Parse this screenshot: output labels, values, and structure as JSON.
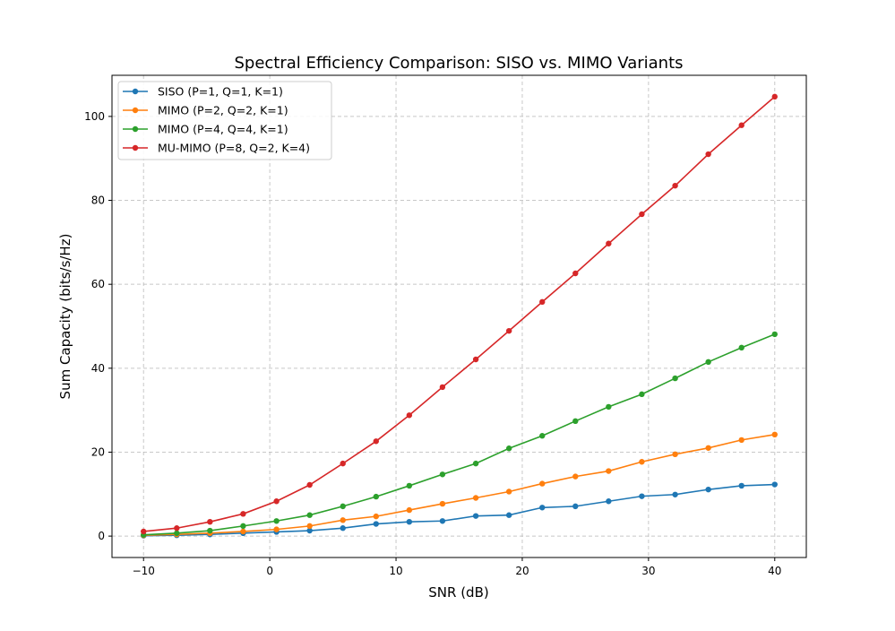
{
  "chart_data": {
    "type": "line",
    "title": "Spectral Efficiency Comparison: SISO vs. MIMO Variants",
    "xlabel": "SNR (dB)",
    "ylabel": "Sum Capacity (bits/s/Hz)",
    "xlim": [
      -12.5,
      42.5
    ],
    "ylim": [
      -5.1,
      109.8
    ],
    "xticks": [
      -10,
      0,
      10,
      20,
      30,
      40
    ],
    "xtick_labels": [
      "−10",
      "0",
      "10",
      "20",
      "30",
      "40"
    ],
    "yticks": [
      0,
      20,
      40,
      60,
      80,
      100
    ],
    "ytick_labels": [
      "0",
      "20",
      "40",
      "60",
      "80",
      "100"
    ],
    "grid": true,
    "legend_position": "top-left",
    "x": [
      -10,
      -7.37,
      -4.74,
      -2.11,
      0.53,
      3.16,
      5.79,
      8.42,
      11.05,
      13.68,
      16.32,
      18.95,
      21.58,
      24.21,
      26.84,
      29.47,
      32.11,
      34.74,
      37.37,
      40
    ],
    "series": [
      {
        "name": "SISO (P=1, Q=1, K=1)",
        "color": "#1f77b4",
        "values": [
          0.1,
          0.2,
          0.4,
          0.7,
          1.0,
          1.3,
          1.9,
          2.9,
          3.4,
          3.6,
          4.8,
          5.0,
          6.8,
          7.1,
          8.3,
          9.5,
          9.9,
          11.1,
          12.0,
          12.3
        ]
      },
      {
        "name": "MIMO (P=2, Q=2, K=1)",
        "color": "#ff7f0e",
        "values": [
          0.2,
          0.4,
          0.7,
          1.1,
          1.6,
          2.4,
          3.8,
          4.7,
          6.2,
          7.7,
          9.1,
          10.6,
          12.5,
          14.2,
          15.5,
          17.7,
          19.5,
          21.0,
          22.9,
          24.2
        ]
      },
      {
        "name": "MIMO (P=4, Q=4, K=1)",
        "color": "#2ca02c",
        "values": [
          0.3,
          0.7,
          1.3,
          2.4,
          3.6,
          5.0,
          7.1,
          9.4,
          12.0,
          14.7,
          17.3,
          20.9,
          23.9,
          27.4,
          30.8,
          33.8,
          37.6,
          41.5,
          44.9,
          48.1
        ]
      },
      {
        "name": "MU-MIMO (P=8, Q=2, K=4)",
        "color": "#d62728",
        "values": [
          1.1,
          1.9,
          3.4,
          5.3,
          8.3,
          12.2,
          17.3,
          22.6,
          28.8,
          35.5,
          42.1,
          48.9,
          55.8,
          62.6,
          69.7,
          76.7,
          83.5,
          91.0,
          97.9,
          104.7
        ]
      }
    ]
  }
}
